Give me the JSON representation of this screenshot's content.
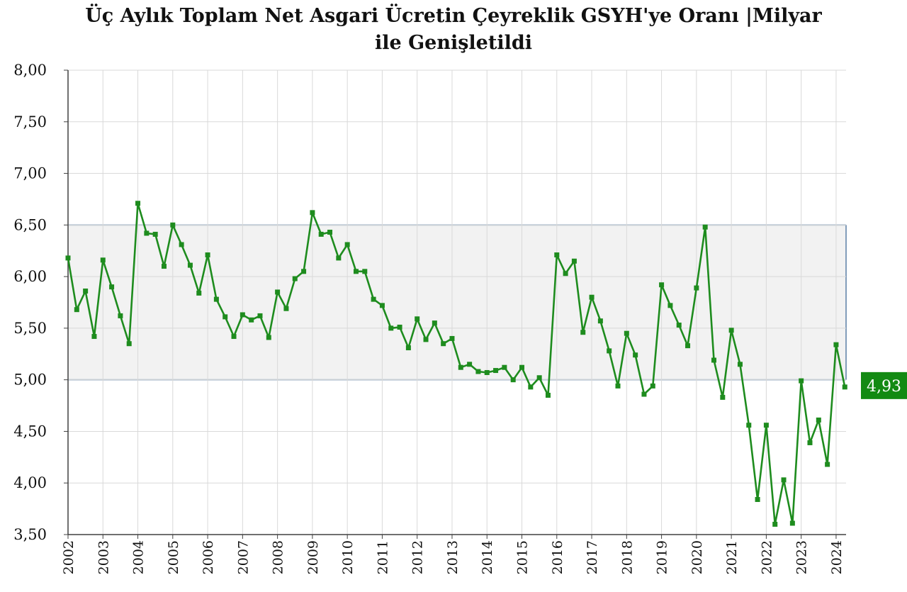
{
  "chart_data": {
    "type": "line",
    "title_line1": "Üç Aylık Toplam Net Asgari Ücretin Çeyreklik GSYH'ye Oranı |Milyar",
    "title_line2": "ile Genişletildi",
    "xlabel": "",
    "ylabel": "",
    "ylim": [
      3.5,
      8.0
    ],
    "yticks": [
      "8,00",
      "7,50",
      "7,00",
      "6,50",
      "6,00",
      "5,50",
      "5,00",
      "4,50",
      "4,00",
      "3,50"
    ],
    "ytick_values": [
      8.0,
      7.5,
      7.0,
      6.5,
      6.0,
      5.5,
      5.0,
      4.5,
      4.0,
      3.5
    ],
    "x_tick_labels": [
      "2002",
      "2003",
      "2004",
      "2005",
      "2006",
      "2007",
      "2008",
      "2009",
      "2010",
      "2011",
      "2012",
      "2013",
      "2014",
      "2015",
      "2016",
      "2017",
      "2018",
      "2019",
      "2020",
      "2021",
      "2022",
      "2023",
      "2024"
    ],
    "grid": true,
    "band": {
      "from": 5.0,
      "to": 6.5,
      "fill": "#f2f2f2",
      "border": "#5b7fa6"
    },
    "line_color": "#1e8c1e",
    "last_value_label": "4,93",
    "last_value_label_bg": "#138a13",
    "series": [
      {
        "values": [
          6.18,
          5.68,
          5.86,
          5.42,
          6.16,
          5.9,
          5.62,
          5.35,
          6.71,
          6.42,
          6.41,
          6.1,
          6.5,
          6.31,
          6.11,
          5.84,
          6.21,
          5.78,
          5.61,
          5.42,
          5.63,
          5.58,
          5.62,
          5.41,
          5.85,
          5.69,
          5.98,
          6.05,
          6.62,
          6.41,
          6.43,
          6.18,
          6.31,
          6.05,
          6.05,
          5.78,
          5.72,
          5.5,
          5.51,
          5.31,
          5.59,
          5.39,
          5.55,
          5.35,
          5.4,
          5.12,
          5.15,
          5.08,
          5.07,
          5.09,
          5.12,
          5.0,
          5.12,
          4.93,
          5.02,
          4.85,
          6.21,
          6.03,
          6.15,
          5.46,
          5.8,
          5.57,
          5.28,
          4.94,
          5.45,
          5.24,
          4.86,
          4.94,
          5.92,
          5.72,
          5.53,
          5.33,
          5.89,
          6.48,
          5.19,
          4.83,
          5.48,
          5.15,
          4.56,
          3.84,
          4.56,
          3.6,
          4.03,
          3.61,
          4.99,
          4.39,
          4.61,
          4.18,
          5.34,
          4.93
        ]
      }
    ]
  }
}
